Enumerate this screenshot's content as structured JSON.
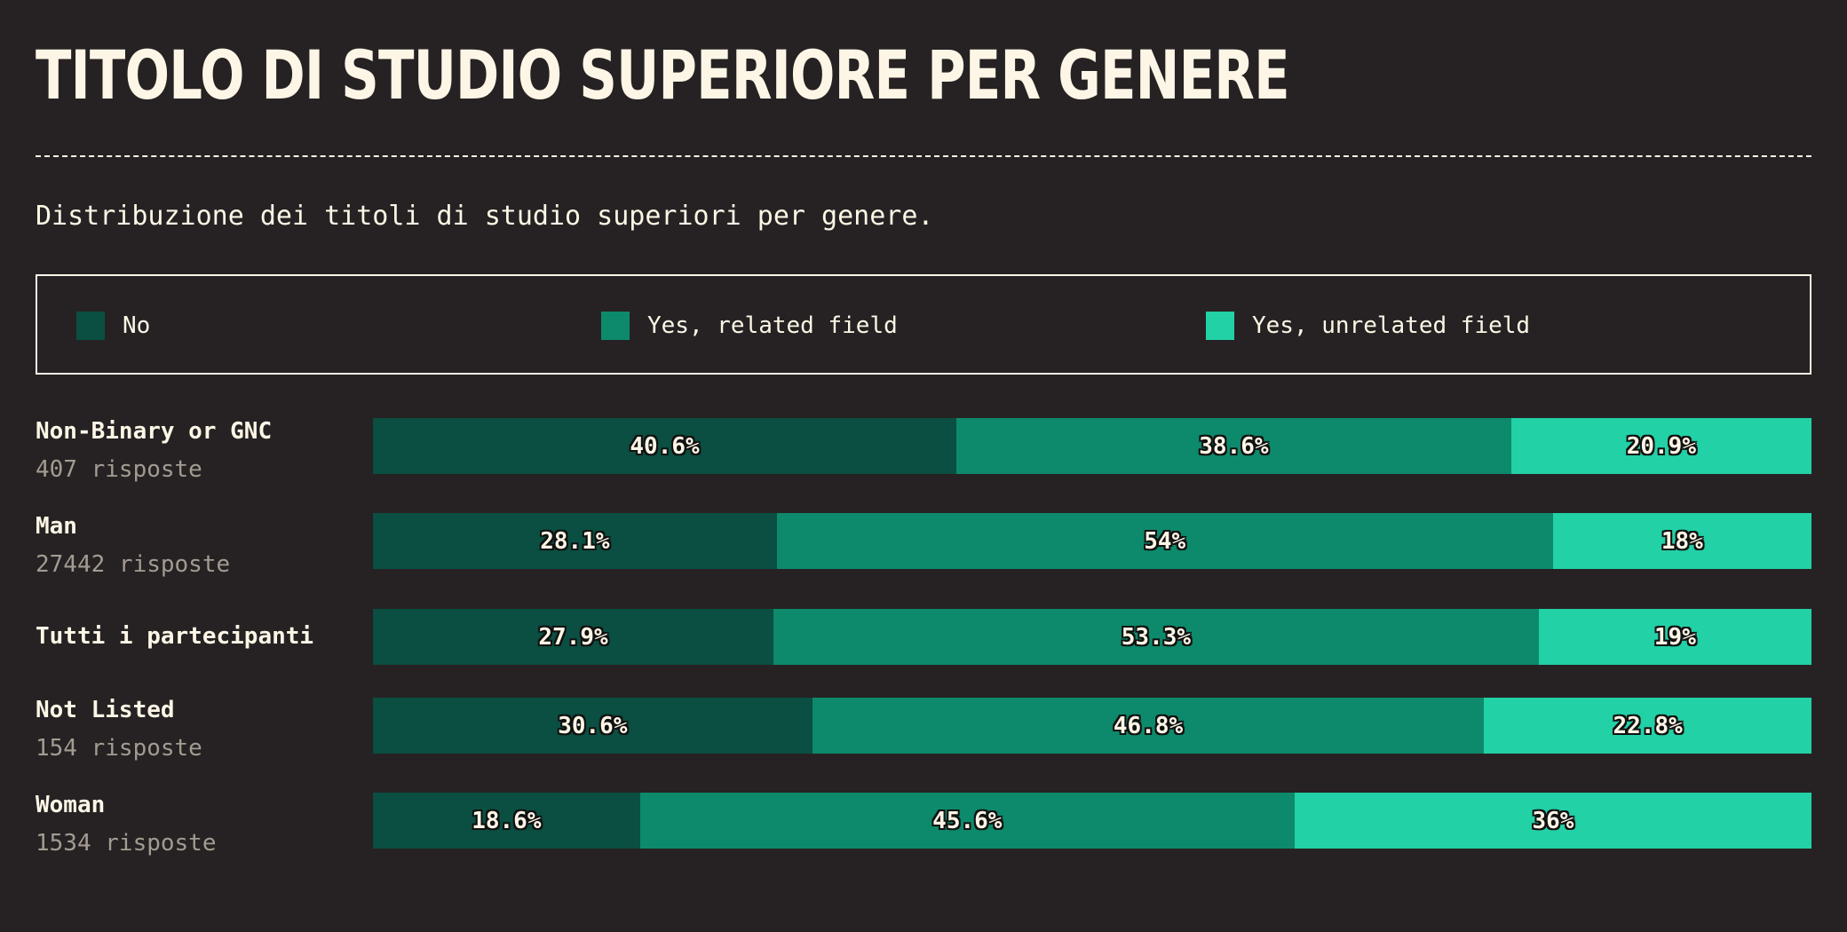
{
  "title": "TITOLO DI STUDIO SUPERIORE PER GENERE",
  "subtitle": "Distribuzione dei titoli di studio superiori per genere.",
  "legend": [
    {
      "label": "No",
      "color": "#0a4f41"
    },
    {
      "label": "Yes, related field",
      "color": "#0d8a6b"
    },
    {
      "label": "Yes, unrelated field",
      "color": "#22d1a6"
    }
  ],
  "chart_data": {
    "type": "bar",
    "orientation": "horizontal",
    "stacked": true,
    "normalized": true,
    "unit": "%",
    "legend_position": "top",
    "categories": [
      "Non-Binary or GNC",
      "Man",
      "Tutti i partecipanti",
      "Not Listed",
      "Woman"
    ],
    "counts": [
      "407 risposte",
      "27442 risposte",
      "",
      "154 risposte",
      "1534 risposte"
    ],
    "series": [
      {
        "name": "No",
        "color": "#0a4f41",
        "values": [
          40.6,
          28.1,
          27.9,
          30.6,
          18.6
        ],
        "labels": [
          "40.6%",
          "28.1%",
          "27.9%",
          "30.6%",
          "18.6%"
        ]
      },
      {
        "name": "Yes, related field",
        "color": "#0d8a6b",
        "values": [
          38.6,
          54,
          53.3,
          46.8,
          45.6
        ],
        "labels": [
          "38.6%",
          "54%",
          "53.3%",
          "46.8%",
          "45.6%"
        ]
      },
      {
        "name": "Yes, unrelated field",
        "color": "#22d1a6",
        "values": [
          20.9,
          18,
          19,
          22.8,
          36
        ],
        "labels": [
          "20.9%",
          "18%",
          "19%",
          "22.8%",
          "36%"
        ]
      }
    ]
  }
}
